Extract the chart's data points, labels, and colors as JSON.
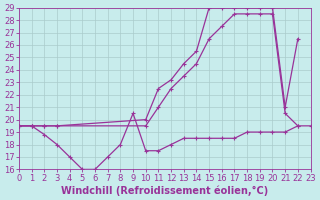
{
  "xlabel": "Windchill (Refroidissement éolien,°C)",
  "bg_color": "#c8ecec",
  "line_color": "#993399",
  "grid_color": "#aacccc",
  "xlim": [
    0,
    23
  ],
  "ylim": [
    16,
    29
  ],
  "xticks": [
    0,
    1,
    2,
    3,
    4,
    5,
    6,
    7,
    8,
    9,
    10,
    11,
    12,
    13,
    14,
    15,
    16,
    17,
    18,
    19,
    20,
    21,
    22,
    23
  ],
  "yticks": [
    16,
    17,
    18,
    19,
    20,
    21,
    22,
    23,
    24,
    25,
    26,
    27,
    28,
    29
  ],
  "line1_x": [
    0,
    1,
    2,
    3,
    10,
    11,
    12,
    13,
    14,
    15,
    16,
    17,
    18,
    19,
    20,
    21,
    22
  ],
  "line1_y": [
    19.5,
    19.5,
    19.5,
    19.5,
    20.0,
    22.5,
    23.2,
    24.5,
    25.5,
    29.0,
    29.0,
    29.0,
    29.0,
    29.0,
    29.0,
    21.0,
    26.5
  ],
  "line2_x": [
    0,
    1,
    2,
    3,
    10,
    11,
    12,
    13,
    14,
    15,
    16,
    17,
    18,
    19,
    20,
    21,
    22
  ],
  "line2_y": [
    19.5,
    19.5,
    19.5,
    19.5,
    19.5,
    21.0,
    22.5,
    23.5,
    24.5,
    26.5,
    27.5,
    28.5,
    28.5,
    28.5,
    28.5,
    20.5,
    19.5
  ],
  "line3_x": [
    0,
    1,
    2,
    3,
    4,
    5,
    6,
    7,
    8,
    9,
    10,
    11,
    12,
    13,
    14,
    15,
    16,
    17,
    18,
    19,
    20,
    21,
    22,
    23
  ],
  "line3_y": [
    19.5,
    19.5,
    18.8,
    18.0,
    17.0,
    16.0,
    16.0,
    17.0,
    18.0,
    20.5,
    17.5,
    17.5,
    18.0,
    18.5,
    18.5,
    18.5,
    18.5,
    18.5,
    19.0,
    19.0,
    19.0,
    19.0,
    19.5,
    19.5
  ],
  "font_color": "#993399",
  "xlabel_fontsize": 7,
  "tick_fontsize": 6,
  "marker_size": 3,
  "linewidth": 0.9
}
